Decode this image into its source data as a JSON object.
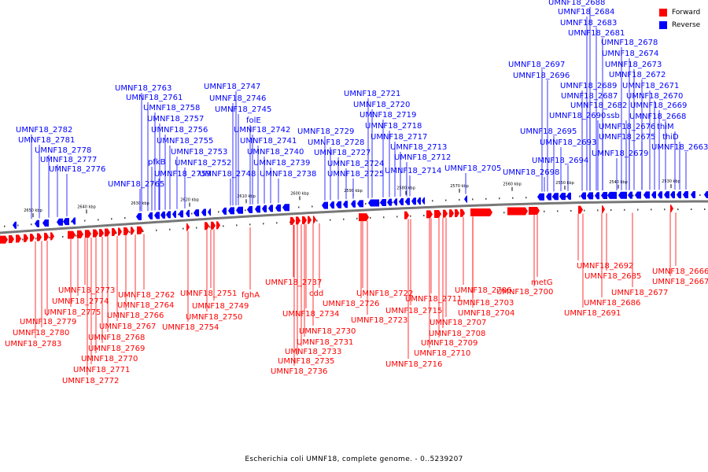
{
  "caption": "Escherichia coli UMNF18, complete genome. - 0..5239207",
  "legend": [
    {
      "label": "Forward",
      "color": "#ff0000"
    },
    {
      "label": "Reverse",
      "color": "#0000ff"
    }
  ],
  "colors": {
    "forward": "#ff0000",
    "reverse": "#0000ff",
    "backbone": "#777777"
  },
  "scale_labels": [
    "2650 kbp",
    "2640 kbp",
    "2630 kbp",
    "2620 kbp",
    "2610 kbp",
    "2600 kbp",
    "2590 kbp",
    "2580 kbp",
    "2570 kbp",
    "2560 kbp",
    "2550 kbp",
    "2540 kbp",
    "2530 kbp"
  ],
  "reverse_labels": [
    "UMNF18_2782",
    "UMNF18_2781",
    "UMNF18_2778",
    "UMNF18_2777",
    "UMNF18_2776",
    "UMNF18_2763",
    "UMNF18_2761",
    "UMNF18_2758",
    "UMNF18_2757",
    "UMNF18_2756",
    "UMNF18_2755",
    "pfkB",
    "UMNF18_2753",
    "UMNF18_2752",
    "UMNF18_2759",
    "UMNF18_2765",
    "UMNF18_2747",
    "UMNF18_2746",
    "UMNF18_2745",
    "folE",
    "UMNF18_2742",
    "UMNF18_2741",
    "UMNF18_2740",
    "UMNF18_2739",
    "UMNF18_2748",
    "UMNF18_2738",
    "UMNF18_2729",
    "UMNF18_2728",
    "UMNF18_2727",
    "UMNF18_2724",
    "UMNF18_2725",
    "UMNF18_2721",
    "UMNF18_2720",
    "UMNF18_2719",
    "UMNF18_2718",
    "UMNF18_2717",
    "UMNF18_2713",
    "UMNF18_2712",
    "UMNF18_2714",
    "UMNF18_2705",
    "UMNF18_2697",
    "UMNF18_2696",
    "UMNF18_2695",
    "UMNF18_2693",
    "UMNF18_2694",
    "UMNF18_2698",
    "UMNF18_2688",
    "UMNF18_2684",
    "UMNF18_2683",
    "UMNF18_2681",
    "UMNF18_2678",
    "UMNF18_2674",
    "UMNF18_2673",
    "UMNF18_2672",
    "UMNF18_2689",
    "UMNF18_2671",
    "UMNF18_2687",
    "UMNF18_2670",
    "UMNF18_2682",
    "UMNF18_2669",
    "UMNF18_2690",
    "ssb",
    "UMNF18_2668",
    "UMNF18_2676",
    "thiM",
    "UMNF18_2675",
    "thiD",
    "UMNF18_2679",
    "UMNF18_2663"
  ],
  "forward_labels": [
    "UMNF18_2773",
    "UMNF18_2774",
    "UMNF18_2775",
    "UMNF18_2779",
    "UMNF18_2780",
    "UMNF18_2783",
    "UMNF18_2762",
    "UMNF18_2764",
    "UMNF18_2766",
    "UMNF18_2767",
    "UMNF18_2768",
    "UMNF18_2769",
    "UMNF18_2770",
    "UMNF18_2771",
    "UMNF18_2772",
    "UMNF18_2751",
    "UMNF18_2749",
    "UMNF18_2750",
    "UMNF18_2754",
    "fghA",
    "UMNF18_2737",
    "cdd",
    "UMNF18_2734",
    "UMNF18_2730",
    "UMNF18_2731",
    "UMNF18_2733",
    "UMNF18_2735",
    "UMNF18_2736",
    "UMNF18_2722",
    "UMNF18_2726",
    "UMNF18_2723",
    "UMNF18_2711",
    "UMNF18_2715",
    "UMNF18_2716",
    "UMNF18_2706",
    "UMNF18_2703",
    "UMNF18_2704",
    "UMNF18_2707",
    "UMNF18_2708",
    "UMNF18_2709",
    "UMNF18_2710",
    "UMNF18_2700",
    "metG",
    "UMNF18_2692",
    "UMNF18_2685",
    "UMNF18_2686",
    "UMNF18_2691",
    "UMNF18_2677",
    "UMNF18_2666",
    "UMNF18_2667"
  ]
}
